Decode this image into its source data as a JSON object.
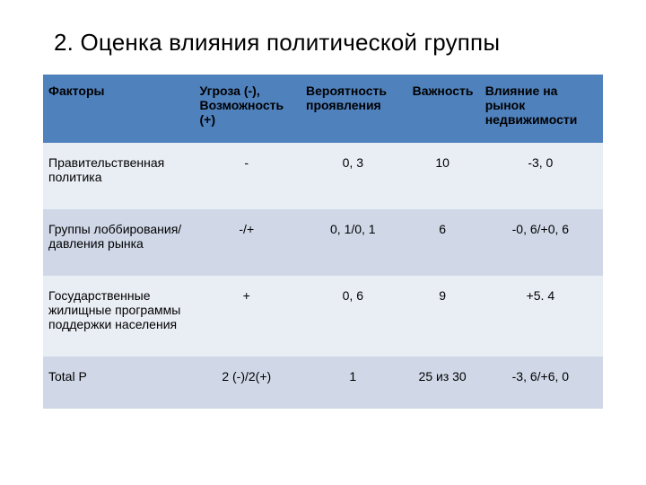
{
  "title": "2. Оценка влияния политической  группы",
  "table": {
    "type": "table",
    "header_bg": "#4f81bd",
    "row_odd_bg": "#e9edf4",
    "row_even_bg": "#d0d8e8",
    "text_color": "#000000",
    "font_family": "Arial",
    "title_fontsize": 26,
    "cell_fontsize": 14,
    "columns": [
      {
        "key": "factor",
        "label": "Факторы",
        "width_pct": 27,
        "align": "left"
      },
      {
        "key": "threat",
        "label": "Угроза (-), Возможность (+)",
        "width_pct": 19,
        "align": "center"
      },
      {
        "key": "prob",
        "label": "Вероятность проявления",
        "width_pct": 19,
        "align": "center"
      },
      {
        "key": "importance",
        "label": "Важность",
        "width_pct": 13,
        "align": "center"
      },
      {
        "key": "influence",
        "label": "Влияние на рынок недвижимости",
        "width_pct": 22,
        "align": "center"
      }
    ],
    "rows": [
      {
        "factor": "Правительственная политика",
        "threat": "-",
        "prob": "0, 3",
        "importance": "10",
        "influence": "-3, 0"
      },
      {
        "factor": "Группы лоббирования/давления рынка",
        "threat": "-/+",
        "prob": "0, 1/0, 1",
        "importance": "6",
        "influence": "-0, 6/+0, 6"
      },
      {
        "factor": "Государственные жилищные программы поддержки населения",
        "threat": "+",
        "prob": "0, 6",
        "importance": "9",
        "influence": "+5. 4"
      },
      {
        "factor": "Total P",
        "threat": "2 (-)/2(+)",
        "prob": "1",
        "importance": "25 из 30",
        "influence": "-3, 6/+6, 0"
      }
    ]
  }
}
